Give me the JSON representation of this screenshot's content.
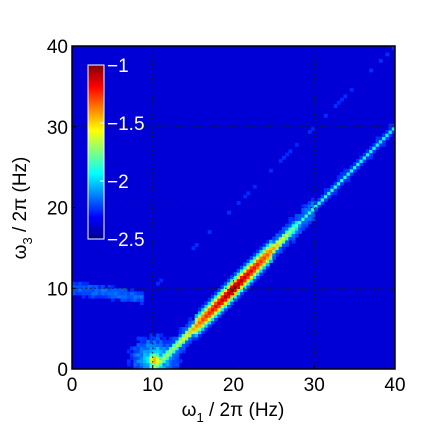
{
  "chart_data": {
    "type": "heatmap",
    "title": "",
    "xlabel": {
      "base": "ω",
      "sub": "1",
      "rest": " / 2π (Hz)"
    },
    "ylabel": {
      "base": "ω",
      "sub": "3",
      "rest": " / 2π (Hz)"
    },
    "xlim": [
      0,
      40
    ],
    "ylim": [
      0,
      40
    ],
    "x_ticks": [
      "0",
      "10",
      "20",
      "30",
      "40"
    ],
    "y_ticks": [
      "0",
      "10",
      "20",
      "30",
      "40"
    ],
    "x_tick_values": [
      0,
      10,
      20,
      30,
      40
    ],
    "y_tick_values": [
      0,
      10,
      20,
      30,
      40
    ],
    "grid": true,
    "colorbar": {
      "placement": "inside-top-left",
      "range": [
        -2.5,
        -1
      ],
      "ticks": [
        "−1",
        "−1.5",
        "−2",
        "−2.5"
      ],
      "tick_values": [
        -1,
        -1.5,
        -2,
        -2.5
      ],
      "colormap": "jet"
    },
    "background_value": -2.5,
    "features": [
      {
        "name": "diagonal-ridge",
        "from": [
          10,
          0
        ],
        "to": [
          40,
          30
        ],
        "peak_at": [
          20,
          10
        ],
        "peak_value": -1.0
      },
      {
        "name": "low-frequency-spot",
        "at": [
          10,
          1
        ],
        "peak_value": -1.4
      },
      {
        "name": "left-edge-band",
        "from": [
          0,
          10
        ],
        "to": [
          8,
          9
        ],
        "peak_value": -2.2
      },
      {
        "name": "upper-diagonal-faint",
        "from": [
          10,
          10
        ],
        "to": [
          40,
          40
        ],
        "peak_value": -2.35
      }
    ],
    "colors": {
      "background": "#0000d6",
      "grid": "#1a1a1a",
      "colormap_stops": [
        "#00008f",
        "#0000ff",
        "#0080ff",
        "#00ffff",
        "#80ff80",
        "#ffff00",
        "#ff8000",
        "#ff0000",
        "#800000"
      ]
    }
  }
}
